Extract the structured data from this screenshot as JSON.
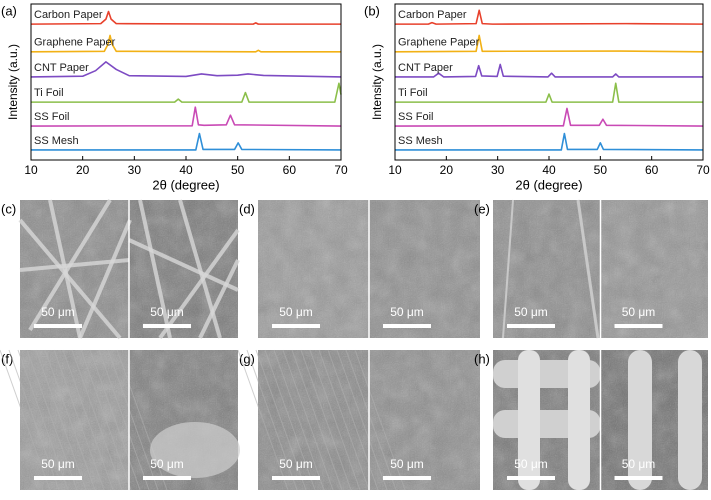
{
  "chart_data": [
    {
      "type": "line",
      "label": "(a)",
      "x_label": "2θ (degree)",
      "y_label": "Intensity (a.u.)",
      "xlim": [
        10,
        70
      ],
      "xticks": [
        10,
        20,
        30,
        40,
        50,
        60,
        70
      ],
      "ylim": [
        0,
        6.2
      ],
      "series": [
        {
          "name": "Carbon Paper",
          "color": "#e8412c",
          "x": [
            10,
            23.5,
            24.5,
            25,
            25.5,
            26.5,
            53,
            53.5,
            54,
            70
          ],
          "values": [
            5.4,
            5.42,
            5.6,
            5.9,
            5.6,
            5.42,
            5.4,
            5.45,
            5.4,
            5.4
          ]
        },
        {
          "name": "Graphene Paper",
          "color": "#f2b115",
          "x": [
            10,
            24.2,
            24.9,
            25.3,
            25.7,
            26.5,
            53.5,
            54,
            54.5,
            70
          ],
          "values": [
            4.3,
            4.32,
            4.6,
            4.95,
            4.6,
            4.32,
            4.3,
            4.36,
            4.3,
            4.3
          ]
        },
        {
          "name": "CNT Paper",
          "color": "#7d4bc3",
          "x": [
            10,
            20,
            22.5,
            24.5,
            26.5,
            29,
            40,
            43,
            46,
            50,
            52,
            55,
            70
          ],
          "values": [
            3.3,
            3.33,
            3.55,
            3.9,
            3.6,
            3.35,
            3.32,
            3.42,
            3.35,
            3.37,
            3.42,
            3.36,
            3.3
          ]
        },
        {
          "name": "Ti Foil",
          "color": "#8bbf4a",
          "x": [
            10,
            37.8,
            38.5,
            39.2,
            50.8,
            51.5,
            52.2,
            68.8,
            69.6,
            70
          ],
          "values": [
            2.3,
            2.3,
            2.42,
            2.3,
            2.3,
            2.68,
            2.3,
            2.3,
            3.05,
            2.6
          ]
        },
        {
          "name": "SS Foil",
          "color": "#c94ab5",
          "x": [
            10,
            41.2,
            41.8,
            42.4,
            43.5,
            47.8,
            48.6,
            49.4,
            70
          ],
          "values": [
            1.35,
            1.36,
            2.1,
            1.4,
            1.38,
            1.4,
            1.78,
            1.4,
            1.35
          ]
        },
        {
          "name": "SS Mesh",
          "color": "#2f8fd8",
          "x": [
            10,
            41.9,
            42.6,
            43.3,
            49.4,
            50.1,
            50.8,
            70
          ],
          "values": [
            0.4,
            0.4,
            1.05,
            0.42,
            0.42,
            0.68,
            0.42,
            0.4
          ]
        }
      ]
    },
    {
      "type": "line",
      "label": "(b)",
      "x_label": "2θ (degree)",
      "y_label": "Intensity (a.u.)",
      "xlim": [
        10,
        70
      ],
      "xticks": [
        10,
        20,
        30,
        40,
        50,
        60,
        70
      ],
      "ylim": [
        0,
        6.2
      ],
      "series": [
        {
          "name": "Carbon Paper",
          "color": "#e8412c",
          "x": [
            10,
            16.5,
            17.2,
            18,
            25.8,
            26.4,
            27,
            29,
            55,
            70
          ],
          "values": [
            5.4,
            5.4,
            5.46,
            5.4,
            5.42,
            5.95,
            5.42,
            5.4,
            5.42,
            5.4
          ]
        },
        {
          "name": "Graphene Paper",
          "color": "#f2b115",
          "x": [
            10,
            25.8,
            26.4,
            27,
            54,
            70
          ],
          "values": [
            4.3,
            4.32,
            4.95,
            4.32,
            4.33,
            4.3
          ]
        },
        {
          "name": "CNT Paper",
          "color": "#7d4bc3",
          "x": [
            10,
            17.5,
            18.5,
            19.5,
            25.7,
            26.3,
            26.9,
            29.9,
            30.5,
            31.1,
            39.8,
            40.5,
            41.2,
            52.4,
            53,
            53.6,
            70
          ],
          "values": [
            3.3,
            3.3,
            3.45,
            3.3,
            3.32,
            3.75,
            3.34,
            3.32,
            3.8,
            3.33,
            3.3,
            3.45,
            3.3,
            3.3,
            3.42,
            3.3,
            3.3
          ]
        },
        {
          "name": "Ti Foil",
          "color": "#8bbf4a",
          "x": [
            10,
            39.4,
            40,
            40.6,
            52.4,
            53,
            53.6,
            70
          ],
          "values": [
            2.3,
            2.3,
            2.62,
            2.3,
            2.3,
            3.05,
            2.3,
            2.3
          ]
        },
        {
          "name": "SS Foil",
          "color": "#c94ab5",
          "x": [
            10,
            42.8,
            43.5,
            44.2,
            49.8,
            50.5,
            51.2,
            70
          ],
          "values": [
            1.35,
            1.36,
            2.05,
            1.38,
            1.38,
            1.62,
            1.38,
            1.35
          ]
        },
        {
          "name": "SS Mesh",
          "color": "#2f8fd8",
          "x": [
            10,
            42.4,
            43,
            43.6,
            49.4,
            50,
            50.6,
            70
          ],
          "values": [
            0.4,
            0.4,
            1.05,
            0.42,
            0.42,
            0.68,
            0.42,
            0.4
          ]
        }
      ]
    }
  ],
  "panels": [
    {
      "label": "(c)",
      "scale_labels": [
        "50 μm",
        "50 μm"
      ]
    },
    {
      "label": "(d)",
      "scale_labels": [
        "50 μm",
        "50 μm"
      ]
    },
    {
      "label": "(e)",
      "scale_labels": [
        "50 μm",
        "50 μm"
      ]
    },
    {
      "label": "(f)",
      "scale_labels": [
        "50 μm",
        "50 μm"
      ]
    },
    {
      "label": "(g)",
      "scale_labels": [
        "50 μm",
        "50 μm"
      ]
    },
    {
      "label": "(h)",
      "scale_labels": [
        "50 μm",
        "50 μm"
      ]
    }
  ]
}
